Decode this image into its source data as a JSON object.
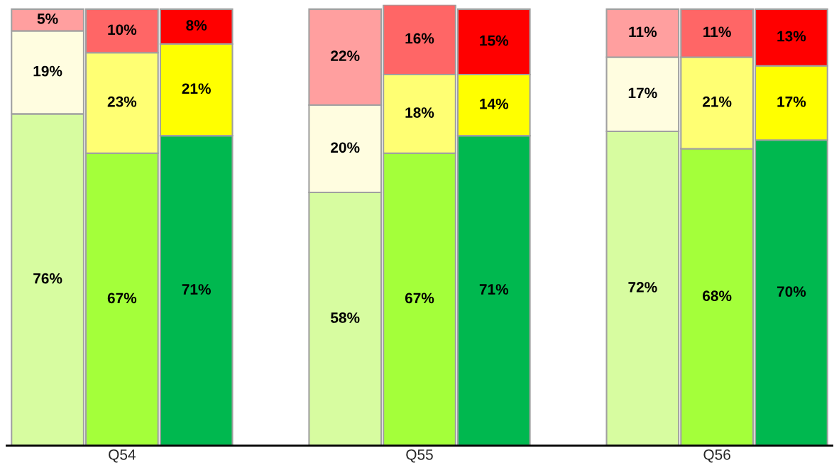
{
  "chart_data": {
    "type": "bar",
    "stacked": true,
    "tick_labels": "x",
    "ylim": [
      0,
      101
    ],
    "categories": [
      null,
      "Q54",
      null,
      null,
      null,
      "Q55",
      null,
      null,
      null,
      "Q56",
      null
    ],
    "series": [
      {
        "colors": [
          "#d7fca0",
          "#a4ff3a",
          "#00b84f",
          null,
          "#d7fca0",
          "#a4ff3a",
          "#00b84f",
          null,
          "#d7fca0",
          "#a4ff3a",
          "#00b84f"
        ],
        "values": [
          76,
          67,
          71,
          null,
          58,
          67,
          71,
          null,
          72,
          68,
          70
        ],
        "value_labels": [
          "76%",
          "67%",
          "71%",
          null,
          "58%",
          "67%",
          "71%",
          null,
          "72%",
          "68%",
          "70%"
        ]
      },
      {
        "colors": [
          "#fffde0",
          "#ffff73",
          "#ffff00",
          null,
          "#fffde0",
          "#ffff73",
          "#ffff00",
          null,
          "#fffde0",
          "#ffff73",
          "#ffff00"
        ],
        "values": [
          19,
          23,
          21,
          null,
          20,
          18,
          14,
          null,
          17,
          21,
          17
        ],
        "value_labels": [
          "19%",
          "23%",
          "21%",
          null,
          "20%",
          "18%",
          "14%",
          null,
          "17%",
          "21%",
          "17%"
        ]
      },
      {
        "colors": [
          "#ff9f9f",
          "#ff6666",
          "#ff0000",
          null,
          "#ff9f9f",
          "#ff6666",
          "#ff0000",
          null,
          "#ff9f9f",
          "#ff6666",
          "#ff0000"
        ],
        "values": [
          5,
          10,
          8,
          null,
          22,
          16,
          15,
          null,
          11,
          11,
          13
        ],
        "value_labels": [
          "5%",
          "10%",
          "8%",
          null,
          "22%",
          "16%",
          "15%",
          null,
          "11%",
          "11%",
          "13%"
        ]
      }
    ]
  }
}
